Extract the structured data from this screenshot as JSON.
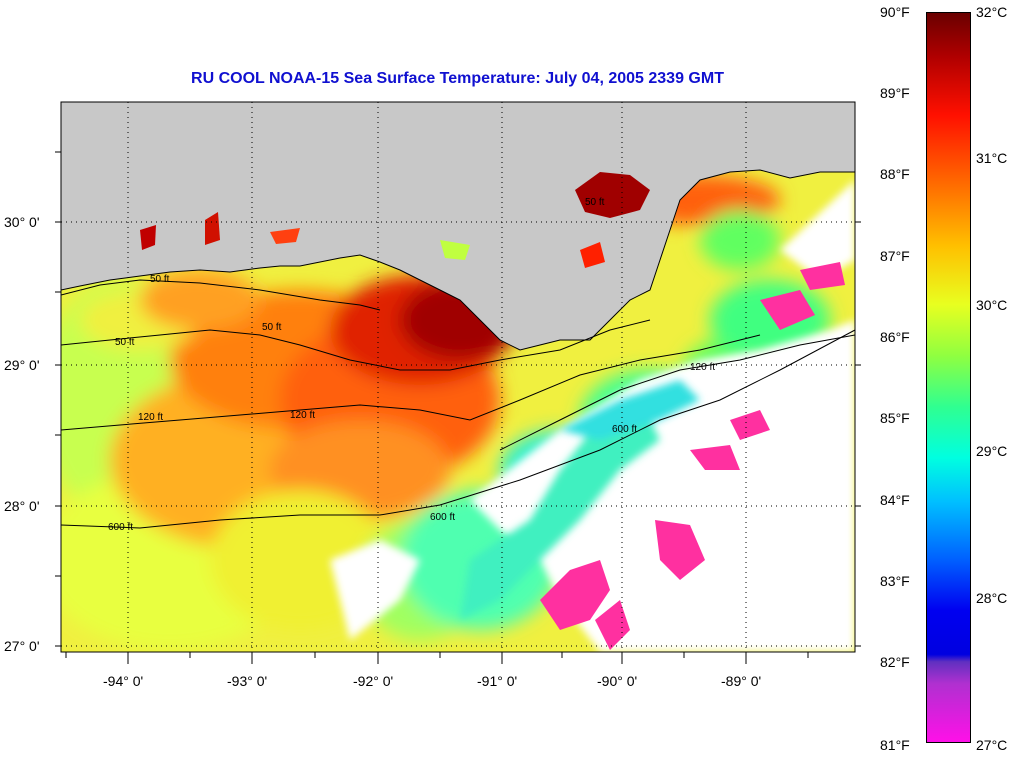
{
  "title": "RU COOL  NOAA-15  Sea Surface Temperature:  July 04, 2005 2339 GMT",
  "latitude_labels": [
    "30° 0'",
    "29° 0'",
    "28° 0'",
    "27° 0'"
  ],
  "longitude_labels": [
    "-94° 0'",
    "-93° 0'",
    "-92° 0'",
    "-91° 0'",
    "-90° 0'",
    "-89° 0'"
  ],
  "colorbar": {
    "fahrenheit_labels": [
      "90°F",
      "89°F",
      "88°F",
      "87°F",
      "86°F",
      "85°F",
      "84°F",
      "83°F",
      "82°F",
      "81°F"
    ],
    "celsius_labels": [
      "32°C",
      "31°C",
      "30°C",
      "29°C",
      "28°C",
      "27°C"
    ]
  },
  "contour_labels": [
    "50 ft",
    "50 ft",
    "50 ft",
    "120 ft",
    "120 ft",
    "600 ft",
    "600 ft",
    "600 ft",
    "120 ft",
    "50 ft"
  ],
  "colors": {
    "land": "#c8c8c8",
    "title": "#1010d0",
    "hot": "#c00000",
    "warm": "#ff8000",
    "mild": "#ffe020",
    "cool": "#40ff90",
    "cold": "#00d0ff",
    "coldest": "#ff40b0",
    "cloud": "#ffffff"
  }
}
